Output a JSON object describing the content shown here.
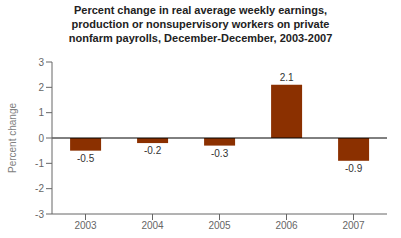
{
  "chart_data": {
    "type": "bar",
    "title": "Percent change in real average weekly earnings,\nproduction or nonsupervisory workers on private\nnonfarm payrolls, December-December, 2003-2007",
    "categories": [
      "2003",
      "2004",
      "2005",
      "2006",
      "2007"
    ],
    "values": [
      -0.5,
      -0.2,
      -0.3,
      2.1,
      -0.9
    ],
    "color": "#8B3000",
    "ylabel": "Percent change",
    "ylim": [
      -3,
      3
    ],
    "yticks": [
      -3,
      -2,
      -1,
      0,
      1,
      2,
      3
    ],
    "data_labels": true,
    "grid": false
  }
}
